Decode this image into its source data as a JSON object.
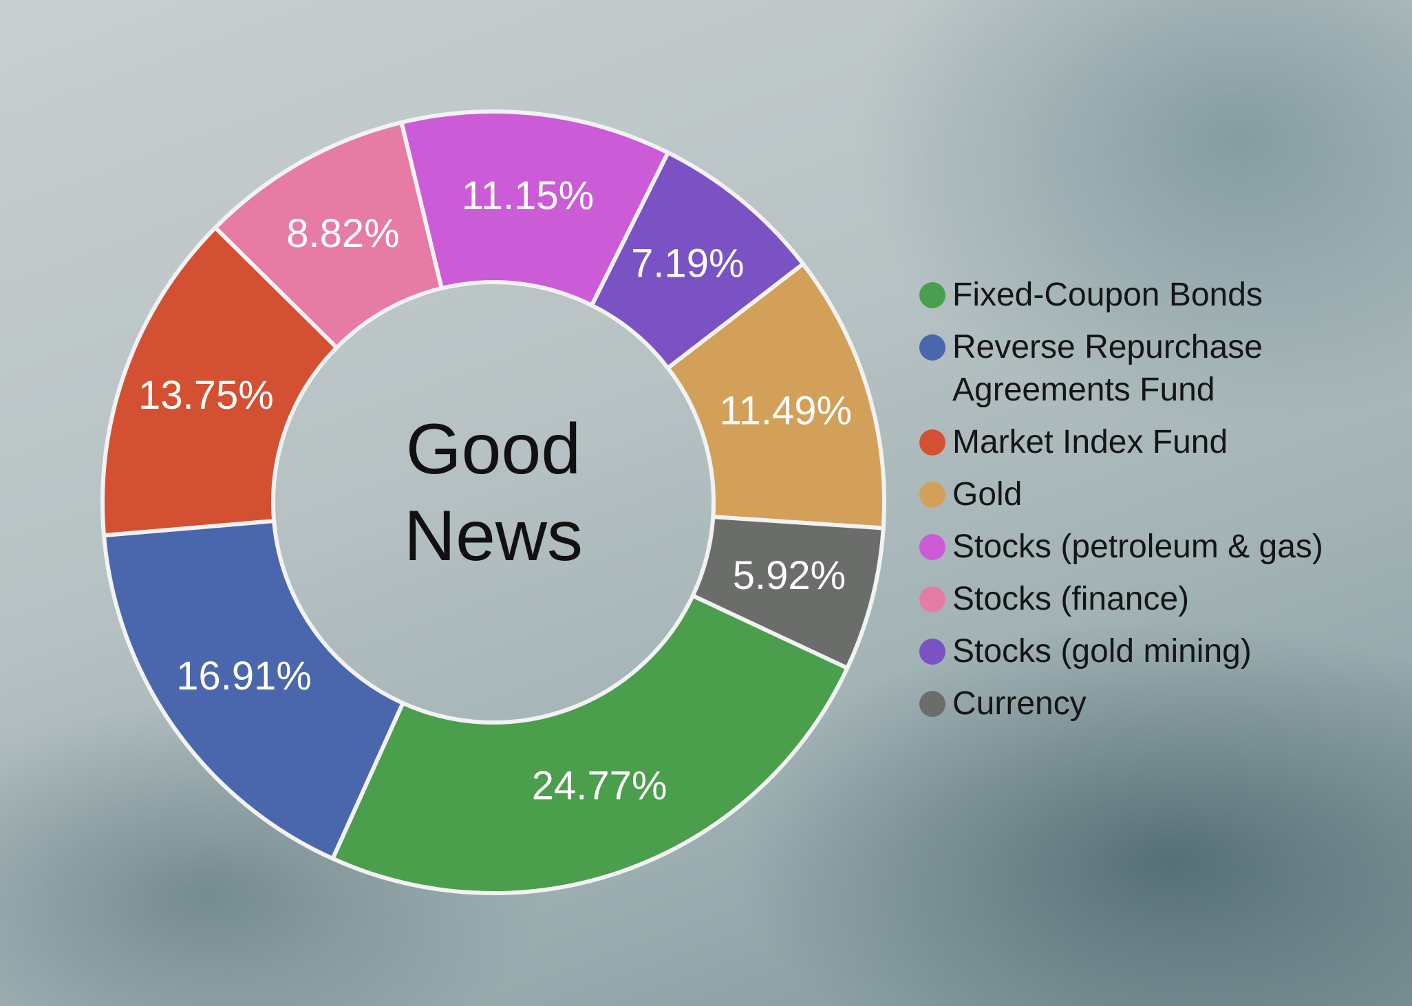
{
  "chart_data": {
    "type": "donut",
    "center_label": "Good News",
    "categories": [
      "Fixed-Coupon Bonds",
      "Reverse Repurchase Agreements Fund",
      "Market Index Fund",
      "Gold",
      "Stocks (petroleum & gas)",
      "Stocks (finance)",
      "Stocks (gold mining)",
      "Currency"
    ],
    "values": [
      24.77,
      16.91,
      13.75,
      11.49,
      11.15,
      8.82,
      7.19,
      5.92
    ],
    "value_labels": [
      "24.77%",
      "16.91%",
      "13.75%",
      "11.49%",
      "11.15%",
      "8.82%",
      "7.19%",
      "5.92%"
    ],
    "colors": [
      "#4a9e4c",
      "#4a66ac",
      "#d35132",
      "#d3a05a",
      "#cc5bd7",
      "#e67ba4",
      "#7a52c3",
      "#6b6d6a"
    ],
    "legend": "right"
  }
}
